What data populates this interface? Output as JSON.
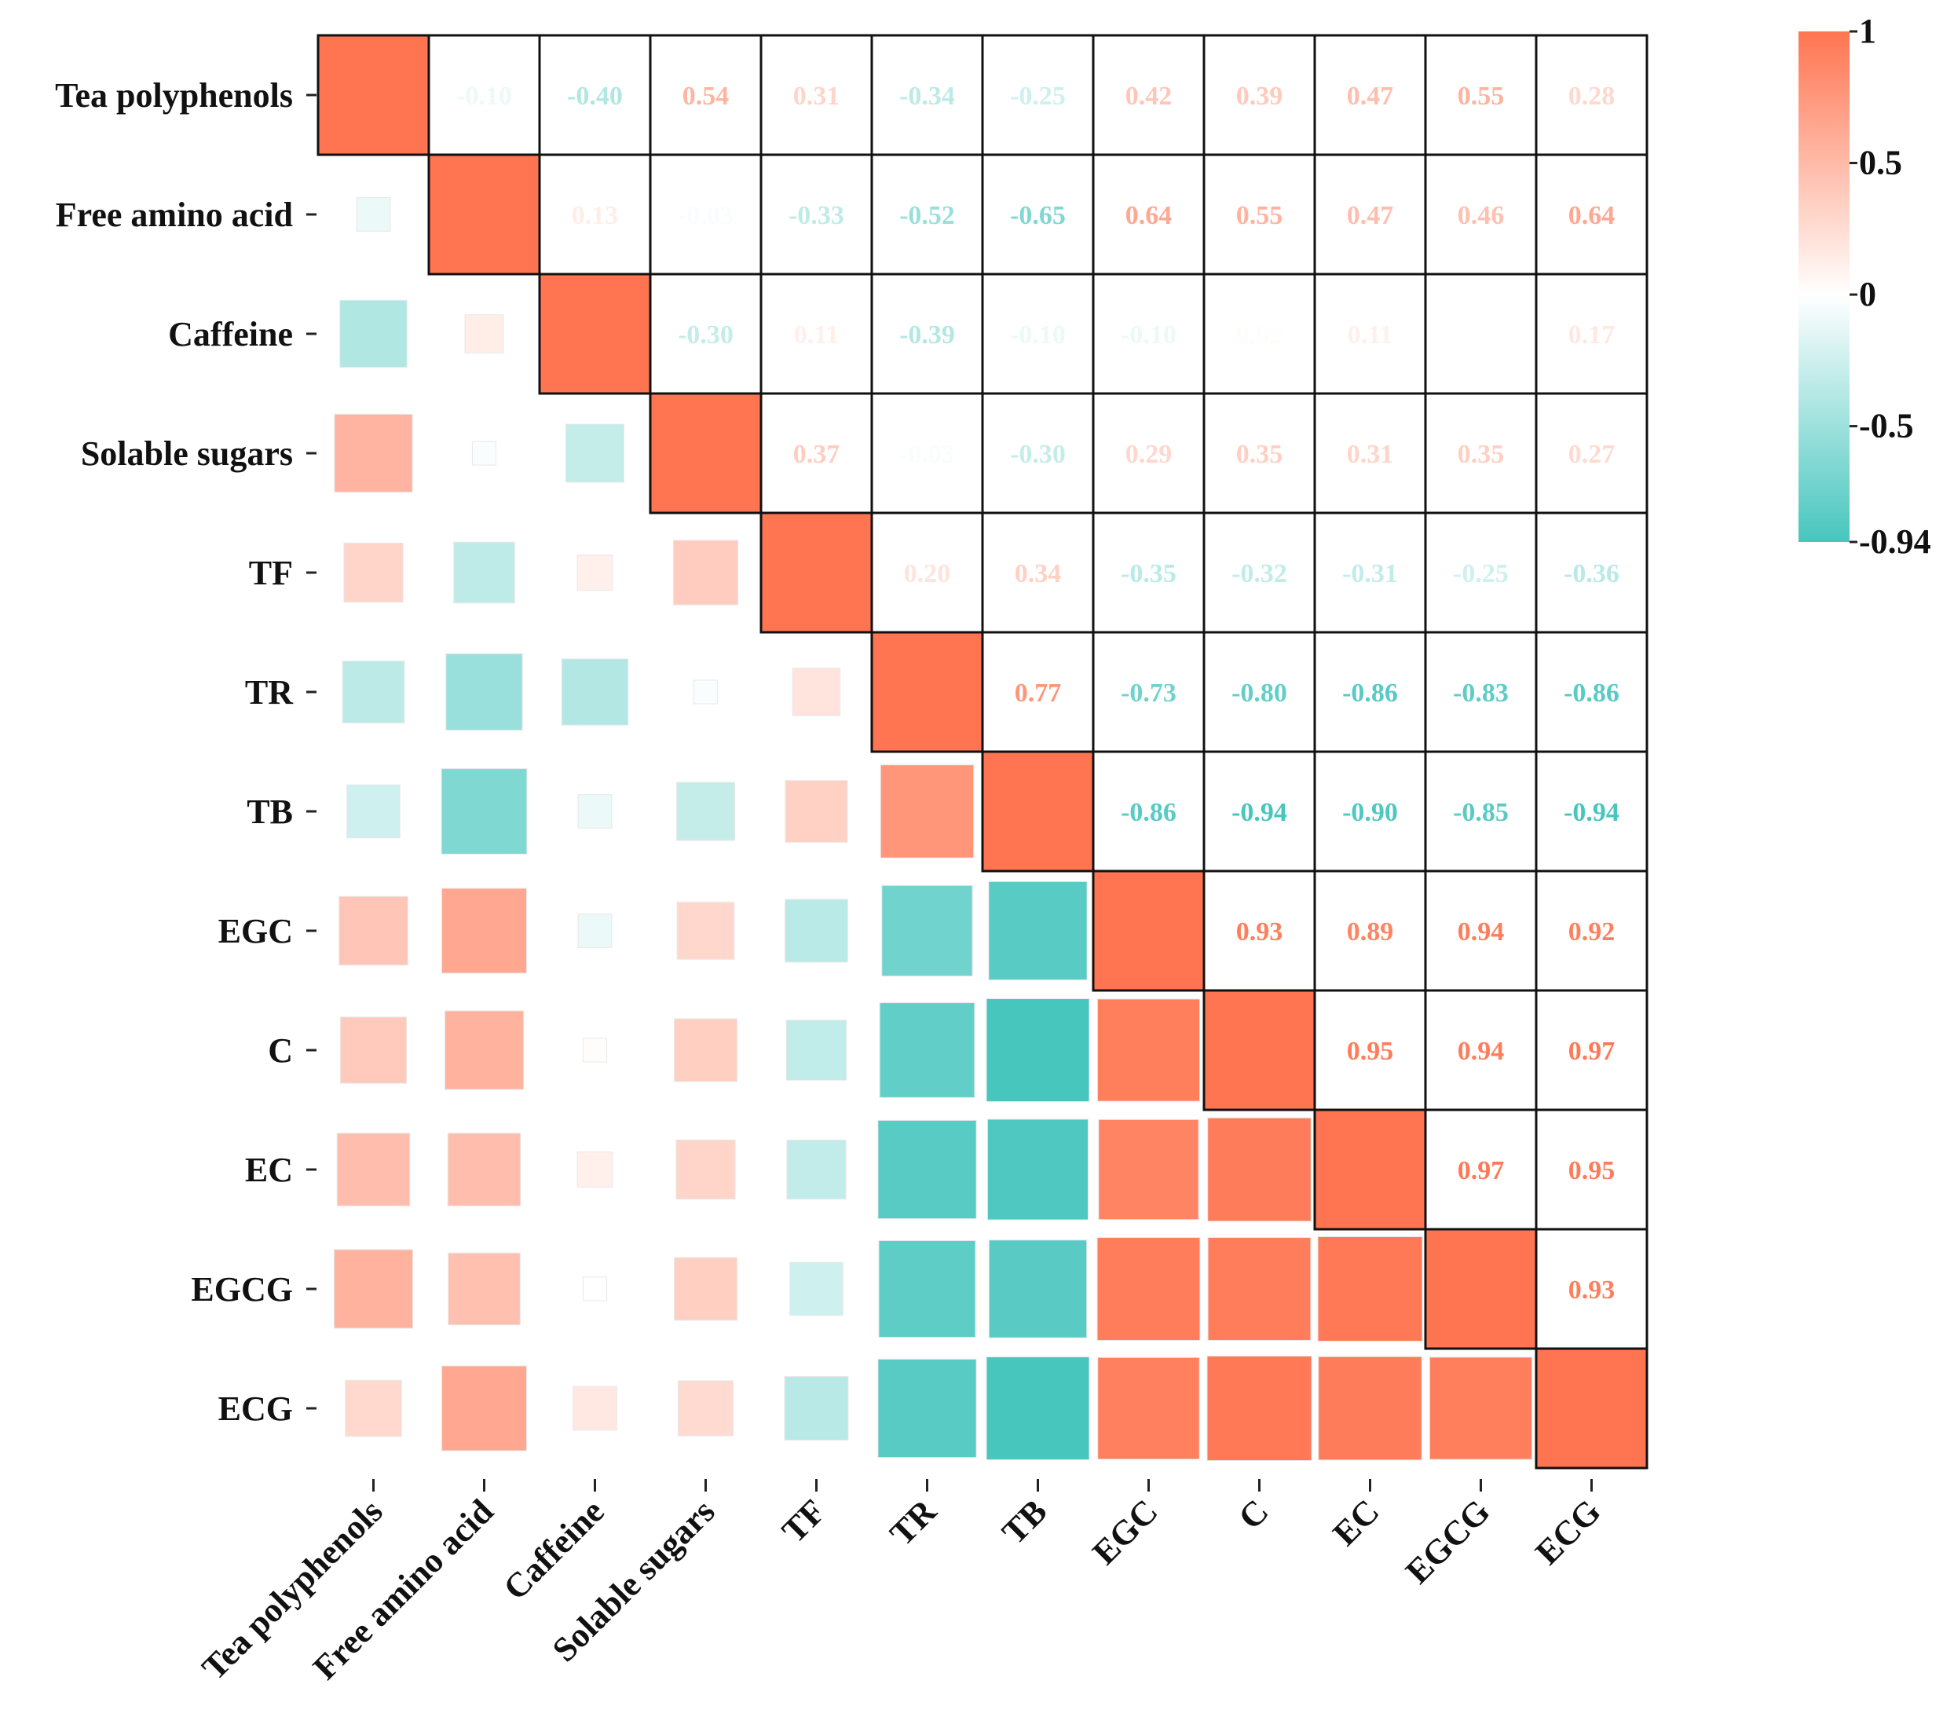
{
  "chart_data": {
    "type": "heatmap",
    "title": "",
    "xlabel": "",
    "ylabel": "",
    "variables": [
      "Tea polyphenols",
      "Free amino acid",
      "Caffeine",
      "Solable sugars",
      "TF",
      "TR",
      "TB",
      "EGC",
      "C",
      "EC",
      "EGCG",
      "ECG"
    ],
    "matrix": [
      [
        1,
        -0.1,
        -0.4,
        0.54,
        0.31,
        -0.34,
        -0.25,
        0.42,
        0.39,
        0.47,
        0.55,
        0.28
      ],
      [
        -0.1,
        1,
        0.13,
        -0.03,
        -0.33,
        -0.52,
        -0.65,
        0.64,
        0.55,
        0.47,
        0.46,
        0.64
      ],
      [
        -0.4,
        0.13,
        1,
        -0.3,
        0.11,
        -0.39,
        -0.1,
        -0.1,
        0.02,
        0.11,
        0.0,
        0.17
      ],
      [
        0.54,
        -0.03,
        -0.3,
        1,
        0.37,
        -0.03,
        -0.3,
        0.29,
        0.35,
        0.31,
        0.35,
        0.27
      ],
      [
        0.31,
        -0.33,
        0.11,
        0.37,
        1,
        0.2,
        0.34,
        -0.35,
        -0.32,
        -0.31,
        -0.25,
        -0.36
      ],
      [
        -0.34,
        -0.52,
        -0.39,
        -0.03,
        0.2,
        1,
        0.77,
        -0.73,
        -0.8,
        -0.86,
        -0.83,
        -0.86
      ],
      [
        -0.25,
        -0.65,
        -0.1,
        -0.3,
        0.34,
        0.77,
        1,
        -0.86,
        -0.94,
        -0.9,
        -0.85,
        -0.94
      ],
      [
        0.42,
        0.64,
        -0.1,
        0.29,
        -0.35,
        -0.73,
        -0.86,
        1,
        0.93,
        0.89,
        0.94,
        0.92
      ],
      [
        0.39,
        0.55,
        0.02,
        0.35,
        -0.32,
        -0.8,
        -0.94,
        0.93,
        1,
        0.95,
        0.94,
        0.97
      ],
      [
        0.47,
        0.47,
        0.11,
        0.31,
        -0.31,
        -0.86,
        -0.9,
        0.89,
        0.95,
        1,
        0.97,
        0.95
      ],
      [
        0.55,
        0.46,
        0.0,
        0.35,
        -0.25,
        -0.83,
        -0.85,
        0.94,
        0.94,
        0.97,
        1,
        0.93
      ],
      [
        0.28,
        0.64,
        0.17,
        0.27,
        -0.36,
        -0.86,
        -0.94,
        0.92,
        0.97,
        0.95,
        0.93,
        1
      ]
    ],
    "upper_triangle": "numbers",
    "lower_triangle": "squares",
    "color_range": [
      -0.94,
      1
    ],
    "colors": {
      "positive": "#ff7551",
      "neutral": "#ffffff",
      "negative": "#47c6be",
      "border": "#111111"
    },
    "colorbar": {
      "ticks": [
        "1",
        "0.5",
        "0",
        "-0.5",
        "-0.94"
      ],
      "tick_values": [
        1,
        0.5,
        0,
        -0.5,
        -0.94
      ],
      "placement": "right"
    }
  }
}
